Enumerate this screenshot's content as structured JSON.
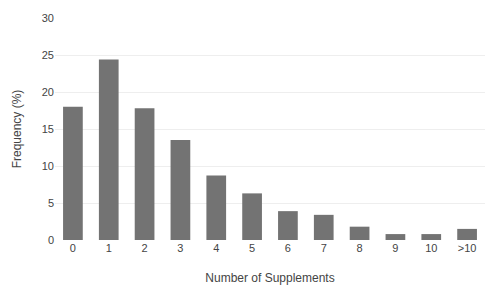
{
  "chart_data": {
    "type": "bar",
    "xlabel": "Number of Supplements",
    "ylabel": "Frequency (%)",
    "categories": [
      "0",
      "1",
      "2",
      "3",
      "4",
      "5",
      "6",
      "7",
      "8",
      "9",
      "10",
      ">10"
    ],
    "values": [
      18.0,
      24.4,
      17.8,
      13.5,
      8.7,
      6.3,
      3.9,
      3.4,
      1.8,
      0.8,
      0.8,
      1.5
    ],
    "color": "#737373",
    "ylim": [
      0,
      30
    ],
    "yticks": [
      0,
      5,
      10,
      15,
      20,
      25,
      30
    ],
    "grid": true
  }
}
